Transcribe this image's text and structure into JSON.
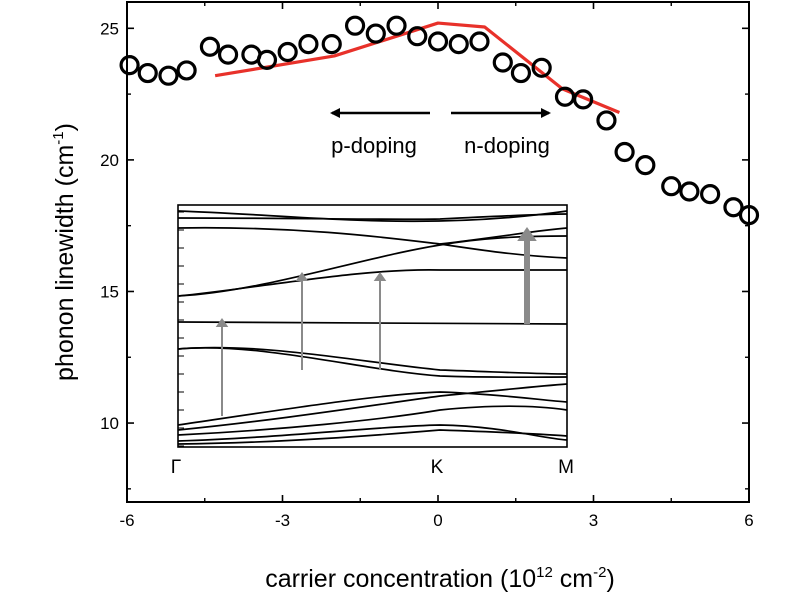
{
  "chart_data": {
    "type": "scatter",
    "xlabel": {
      "text": "carrier concentration (10",
      "sup": "12",
      "mid": " cm",
      "sup2": "-2",
      "end": ")"
    },
    "ylabel": {
      "text": "phonon linewidth (cm",
      "sup": "-1",
      "end": ")"
    },
    "xlim": [
      -6,
      6
    ],
    "ylim": [
      7,
      26
    ],
    "x_ticks": [
      -6,
      -3,
      0,
      3,
      6
    ],
    "x_tick_labels": [
      "-6",
      "-3",
      "0",
      "3",
      "6"
    ],
    "y_ticks": [
      10,
      15,
      20,
      25
    ],
    "y_tick_labels": [
      "10",
      "15",
      "20",
      "25"
    ],
    "grid": false,
    "series": [
      {
        "marker": "open-circle",
        "color": "#000000",
        "points": [
          [
            -5.95,
            23.6
          ],
          [
            -5.6,
            23.3
          ],
          [
            -5.2,
            23.2
          ],
          [
            -4.85,
            23.4
          ],
          [
            -4.4,
            24.3
          ],
          [
            -4.05,
            24.0
          ],
          [
            -3.6,
            24.0
          ],
          [
            -3.3,
            23.8
          ],
          [
            -2.9,
            24.1
          ],
          [
            -2.5,
            24.4
          ],
          [
            -2.05,
            24.4
          ],
          [
            -1.6,
            25.1
          ],
          [
            -1.2,
            24.8
          ],
          [
            -0.8,
            25.1
          ],
          [
            -0.4,
            24.7
          ],
          [
            0.0,
            24.5
          ],
          [
            0.4,
            24.4
          ],
          [
            0.8,
            24.5
          ],
          [
            1.25,
            23.7
          ],
          [
            1.6,
            23.3
          ],
          [
            2.0,
            23.5
          ],
          [
            2.45,
            22.4
          ],
          [
            2.8,
            22.3
          ],
          [
            3.25,
            21.5
          ],
          [
            3.6,
            20.3
          ],
          [
            4.0,
            19.8
          ],
          [
            4.5,
            19.0
          ],
          [
            4.85,
            18.8
          ],
          [
            5.25,
            18.7
          ],
          [
            5.7,
            18.2
          ],
          [
            6.0,
            17.9
          ]
        ]
      },
      {
        "marker": "line",
        "color": "#e8312a",
        "points": [
          [
            -4.3,
            23.2
          ],
          [
            -2.0,
            23.95
          ],
          [
            0.0,
            25.2
          ],
          [
            0.9,
            25.05
          ],
          [
            2.4,
            22.7
          ],
          [
            3.5,
            21.8
          ]
        ]
      }
    ],
    "annotations": [
      {
        "text": "p-doping",
        "arrow": "left"
      },
      {
        "text": "n-doping",
        "arrow": "right"
      }
    ],
    "inset": {
      "type": "band-structure",
      "k_labels": [
        "Γ",
        "K",
        "M"
      ],
      "arrow_color": "#8a8a8a"
    }
  }
}
